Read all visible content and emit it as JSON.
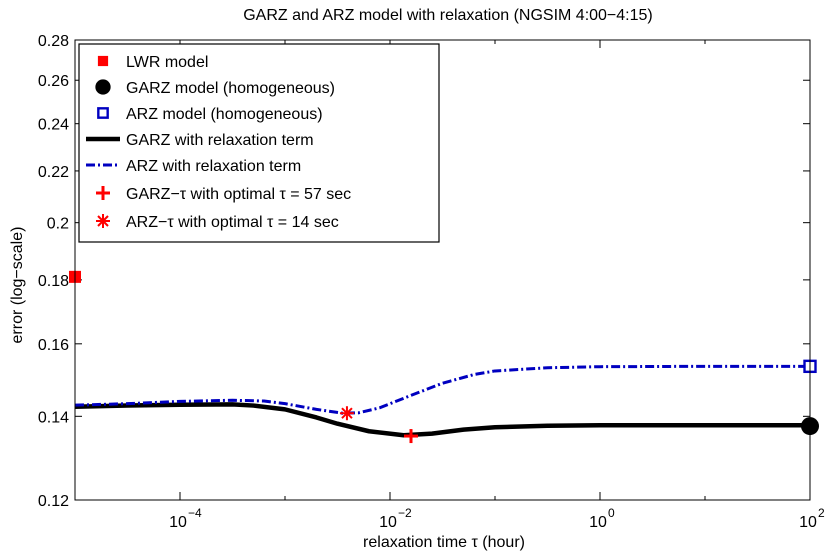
{
  "chart_data": {
    "type": "line",
    "title": "GARZ and ARZ model with relaxation (NGSIM 4:00−4:15)",
    "xlabel": "relaxation time τ (hour)",
    "ylabel": "error (log−scale)",
    "xscale": "log",
    "yscale": "log",
    "xlim_log10": [
      -5,
      2
    ],
    "ylim": [
      0.12,
      0.28
    ],
    "grid": false,
    "legend_position": "top-left",
    "x_ticks": [
      {
        "log10": -4,
        "base": "10",
        "exp": "−4"
      },
      {
        "log10": -2,
        "base": "10",
        "exp": "−2"
      },
      {
        "log10": 0,
        "base": "10",
        "exp": "0"
      },
      {
        "log10": 2,
        "base": "10",
        "exp": "2"
      }
    ],
    "y_ticks": [
      {
        "value": 0.12,
        "label": "0.12"
      },
      {
        "value": 0.14,
        "label": "0.14"
      },
      {
        "value": 0.16,
        "label": "0.16"
      },
      {
        "value": 0.18,
        "label": "0.18"
      },
      {
        "value": 0.2,
        "label": "0.2"
      },
      {
        "value": 0.22,
        "label": "0.22"
      },
      {
        "value": 0.24,
        "label": "0.24"
      },
      {
        "value": 0.26,
        "label": "0.26"
      },
      {
        "value": 0.28,
        "label": "0.28"
      }
    ],
    "series": [
      {
        "name": "LWR model",
        "kind": "marker",
        "marker": "filled-square",
        "color": "#ff0000",
        "points": [
          {
            "log10x": -5,
            "y": 0.181
          }
        ]
      },
      {
        "name": "GARZ model (homogeneous)",
        "kind": "marker",
        "marker": "filled-circle",
        "color": "#000000",
        "points": [
          {
            "log10x": 2,
            "y": 0.1375
          }
        ]
      },
      {
        "name": "ARZ model (homogeneous)",
        "kind": "marker",
        "marker": "open-square",
        "color": "#0000c0",
        "points": [
          {
            "log10x": 2,
            "y": 0.1535
          }
        ]
      },
      {
        "name": "GARZ with relaxation term",
        "kind": "line",
        "style": "solid",
        "color": "#000000",
        "points": [
          {
            "log10x": -5,
            "y": 0.1425
          },
          {
            "log10x": -4.5,
            "y": 0.1428
          },
          {
            "log10x": -4,
            "y": 0.143
          },
          {
            "log10x": -3.5,
            "y": 0.1431
          },
          {
            "log10x": -3.3,
            "y": 0.1428
          },
          {
            "log10x": -3,
            "y": 0.1418
          },
          {
            "log10x": -2.7,
            "y": 0.1397
          },
          {
            "log10x": -2.5,
            "y": 0.1381
          },
          {
            "log10x": -2.2,
            "y": 0.1362
          },
          {
            "log10x": -1.87,
            "y": 0.1352
          },
          {
            "log10x": -1.6,
            "y": 0.1356
          },
          {
            "log10x": -1.3,
            "y": 0.1366
          },
          {
            "log10x": -1,
            "y": 0.1372
          },
          {
            "log10x": -0.5,
            "y": 0.1376
          },
          {
            "log10x": 0,
            "y": 0.1377
          },
          {
            "log10x": 1,
            "y": 0.1377
          },
          {
            "log10x": 2,
            "y": 0.1377
          }
        ]
      },
      {
        "name": "ARZ with relaxation term",
        "kind": "line",
        "style": "dash-dot",
        "color": "#0000c0",
        "points": [
          {
            "log10x": -5,
            "y": 0.1429
          },
          {
            "log10x": -4.5,
            "y": 0.1433
          },
          {
            "log10x": -4,
            "y": 0.1439
          },
          {
            "log10x": -3.5,
            "y": 0.1442
          },
          {
            "log10x": -3.2,
            "y": 0.144
          },
          {
            "log10x": -3,
            "y": 0.1433
          },
          {
            "log10x": -2.7,
            "y": 0.1418
          },
          {
            "log10x": -2.45,
            "y": 0.1408
          },
          {
            "log10x": -2.3,
            "y": 0.1409
          },
          {
            "log10x": -2.1,
            "y": 0.1422
          },
          {
            "log10x": -1.8,
            "y": 0.1455
          },
          {
            "log10x": -1.5,
            "y": 0.1488
          },
          {
            "log10x": -1.2,
            "y": 0.1512
          },
          {
            "log10x": -1,
            "y": 0.1522
          },
          {
            "log10x": -0.5,
            "y": 0.1531
          },
          {
            "log10x": 0,
            "y": 0.1534
          },
          {
            "log10x": 1,
            "y": 0.1535
          },
          {
            "log10x": 2,
            "y": 0.1535
          }
        ]
      },
      {
        "name": "GARZ−τ with optimal τ = 57 sec",
        "kind": "marker",
        "marker": "plus",
        "color": "#ff0000",
        "points": [
          {
            "log10x": -1.8,
            "y": 0.135
          }
        ]
      },
      {
        "name": "ARZ−τ with optimal τ = 14 sec",
        "kind": "marker",
        "marker": "asterisk",
        "color": "#ff0000",
        "points": [
          {
            "log10x": -2.41,
            "y": 0.1408
          }
        ]
      }
    ]
  }
}
